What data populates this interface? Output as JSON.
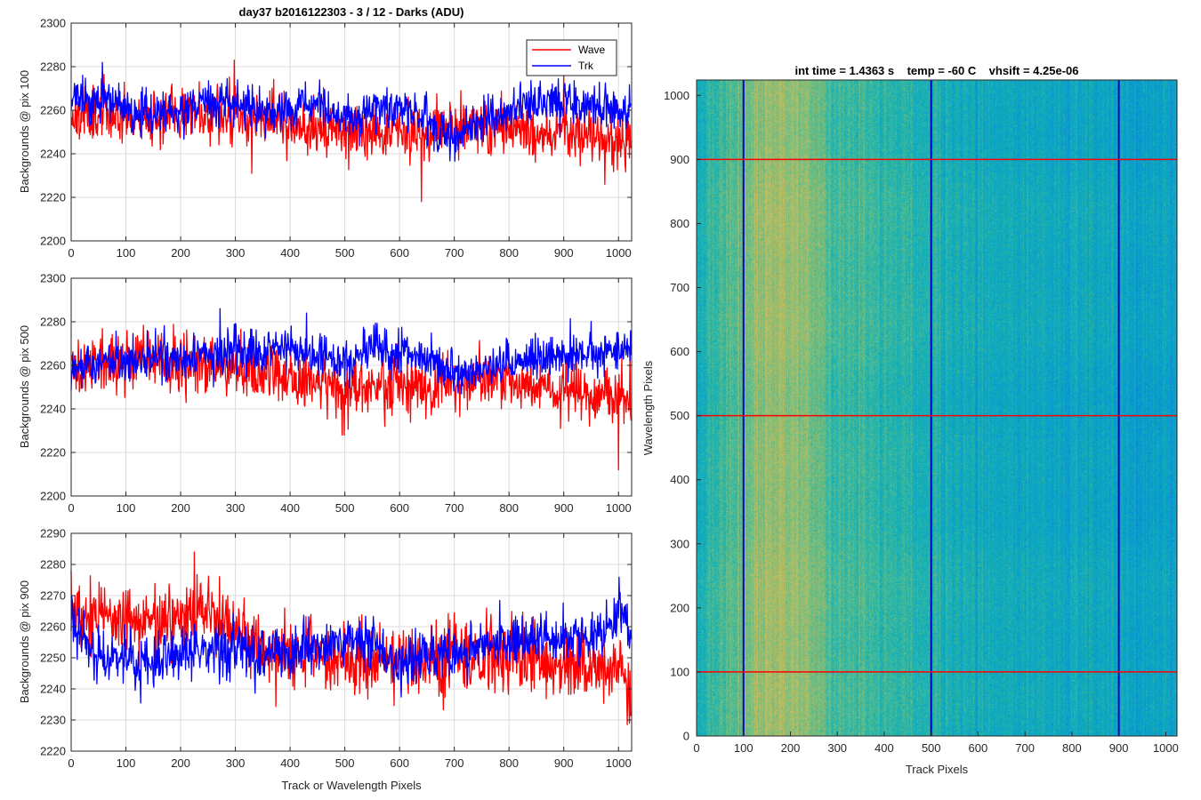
{
  "figure": {
    "title": "day37 b2016122303 - 3 / 12 - Darks (ADU)",
    "legend": [
      "Wave",
      "Trk"
    ],
    "colors": {
      "wave": "#ff0000",
      "trk": "#0000ff"
    }
  },
  "chart_data": [
    {
      "type": "line",
      "name": "panel-pix-100",
      "title": "day37 b2016122303 - 3 / 12 - Darks (ADU)",
      "xlabel": "",
      "ylabel": "Backgrounds @ pix 100",
      "xlim": [
        0,
        1024
      ],
      "ylim": [
        2200,
        2300
      ],
      "xticks": [
        0,
        100,
        200,
        300,
        400,
        500,
        600,
        700,
        800,
        900,
        1000
      ],
      "yticks": [
        2200,
        2220,
        2240,
        2260,
        2280,
        2300
      ],
      "grid": true,
      "legend": "top-right",
      "x": [
        0,
        50,
        100,
        150,
        200,
        250,
        300,
        350,
        400,
        450,
        500,
        550,
        600,
        650,
        700,
        750,
        800,
        850,
        900,
        950,
        1000,
        1023
      ],
      "series": [
        {
          "name": "Wave",
          "color": "#ff0000",
          "noise": 8,
          "seed": 11,
          "values": [
            2258,
            2259,
            2258,
            2257,
            2259,
            2259,
            2258,
            2257,
            2255,
            2252,
            2250,
            2251,
            2252,
            2250,
            2252,
            2253,
            2252,
            2250,
            2249,
            2248,
            2246,
            2244
          ],
          "spikes": [
            [
              298,
              2283
            ],
            [
              640,
              2218
            ],
            [
              330,
              2231
            ],
            [
              975,
              2226
            ]
          ]
        },
        {
          "name": "Trk",
          "color": "#0000ff",
          "noise": 6,
          "seed": 23,
          "values": [
            2265,
            2264,
            2261,
            2258,
            2260,
            2264,
            2262,
            2259,
            2260,
            2262,
            2255,
            2260,
            2262,
            2257,
            2247,
            2255,
            2260,
            2265,
            2264,
            2262,
            2260,
            2259
          ],
          "spikes": [
            [
              57,
              2282
            ]
          ]
        }
      ]
    },
    {
      "type": "line",
      "name": "panel-pix-500",
      "title": "",
      "xlabel": "",
      "ylabel": "Backgrounds @ pix 500",
      "xlim": [
        0,
        1024
      ],
      "ylim": [
        2200,
        2300
      ],
      "xticks": [
        0,
        100,
        200,
        300,
        400,
        500,
        600,
        700,
        800,
        900,
        1000
      ],
      "yticks": [
        2200,
        2220,
        2240,
        2260,
        2280,
        2300
      ],
      "grid": true,
      "x": [
        0,
        50,
        100,
        150,
        200,
        250,
        300,
        350,
        400,
        450,
        500,
        550,
        600,
        650,
        700,
        750,
        800,
        850,
        900,
        950,
        1000,
        1023
      ],
      "series": [
        {
          "name": "Wave",
          "color": "#ff0000",
          "noise": 8,
          "seed": 31,
          "values": [
            2258,
            2260,
            2262,
            2263,
            2262,
            2260,
            2258,
            2255,
            2254,
            2252,
            2250,
            2251,
            2252,
            2251,
            2253,
            2254,
            2253,
            2250,
            2250,
            2248,
            2245,
            2242
          ],
          "spikes": [
            [
              1000,
              2212
            ],
            [
              495,
              2228
            ]
          ]
        },
        {
          "name": "Trk",
          "color": "#0000ff",
          "noise": 6,
          "seed": 47,
          "values": [
            2258,
            2262,
            2263,
            2262,
            2262,
            2265,
            2267,
            2266,
            2268,
            2265,
            2260,
            2270,
            2265,
            2262,
            2256,
            2258,
            2262,
            2263,
            2264,
            2265,
            2268,
            2267
          ],
          "spikes": [
            [
              272,
              2286
            ],
            [
              430,
              2284
            ]
          ]
        }
      ]
    },
    {
      "type": "line",
      "name": "panel-pix-900",
      "title": "",
      "xlabel": "Track or Wavelength Pixels",
      "ylabel": "Backgrounds @ pix 900",
      "xlim": [
        0,
        1024
      ],
      "ylim": [
        2220,
        2290
      ],
      "xticks": [
        0,
        100,
        200,
        300,
        400,
        500,
        600,
        700,
        800,
        900,
        1000
      ],
      "yticks": [
        2220,
        2230,
        2240,
        2250,
        2260,
        2270,
        2280,
        2290
      ],
      "grid": true,
      "x": [
        0,
        50,
        100,
        150,
        200,
        250,
        300,
        350,
        400,
        450,
        500,
        550,
        600,
        650,
        700,
        750,
        800,
        850,
        900,
        950,
        1000,
        1023
      ],
      "series": [
        {
          "name": "Wave",
          "color": "#ff0000",
          "noise": 7,
          "seed": 53,
          "values": [
            2265,
            2263,
            2261,
            2262,
            2264,
            2265,
            2258,
            2254,
            2252,
            2250,
            2248,
            2249,
            2250,
            2248,
            2252,
            2250,
            2250,
            2249,
            2248,
            2249,
            2246,
            2236
          ],
          "spikes": [
            [
              225,
              2284
            ],
            [
              0,
              2278
            ],
            [
              1020,
              2229
            ]
          ]
        },
        {
          "name": "Trk",
          "color": "#0000ff",
          "noise": 5,
          "seed": 67,
          "values": [
            2262,
            2250,
            2250,
            2248,
            2250,
            2252,
            2252,
            2250,
            2252,
            2254,
            2255,
            2255,
            2248,
            2250,
            2252,
            2254,
            2255,
            2256,
            2257,
            2258,
            2264,
            2262
          ],
          "spikes": []
        }
      ]
    },
    {
      "type": "heatmap",
      "name": "dark-frame-image",
      "title": "int time = 1.4363 s    temp = -60 C    vhsift = 4.25e-06",
      "xlabel": "Track Pixels",
      "ylabel": "Wavelength Pixels",
      "xlim": [
        0,
        1024
      ],
      "ylim": [
        0,
        1024
      ],
      "xticks": [
        0,
        100,
        200,
        300,
        400,
        500,
        600,
        700,
        800,
        900,
        1000
      ],
      "yticks": [
        0,
        100,
        200,
        300,
        400,
        500,
        600,
        700,
        800,
        900,
        1000
      ],
      "colormap": "parula",
      "vlines": [
        100,
        500,
        900
      ],
      "vline_color": "#0000cc",
      "hlines": [
        100,
        500,
        900
      ],
      "hline_color": "#ff0000",
      "column_profile": {
        "x": [
          0,
          40,
          80,
          110,
          150,
          200,
          240,
          300,
          400,
          500,
          600,
          700,
          800,
          900,
          960,
          1024
        ],
        "level": [
          0.5,
          0.56,
          0.62,
          0.68,
          0.72,
          0.73,
          0.68,
          0.58,
          0.55,
          0.48,
          0.46,
          0.45,
          0.44,
          0.42,
          0.4,
          0.42
        ]
      }
    }
  ]
}
